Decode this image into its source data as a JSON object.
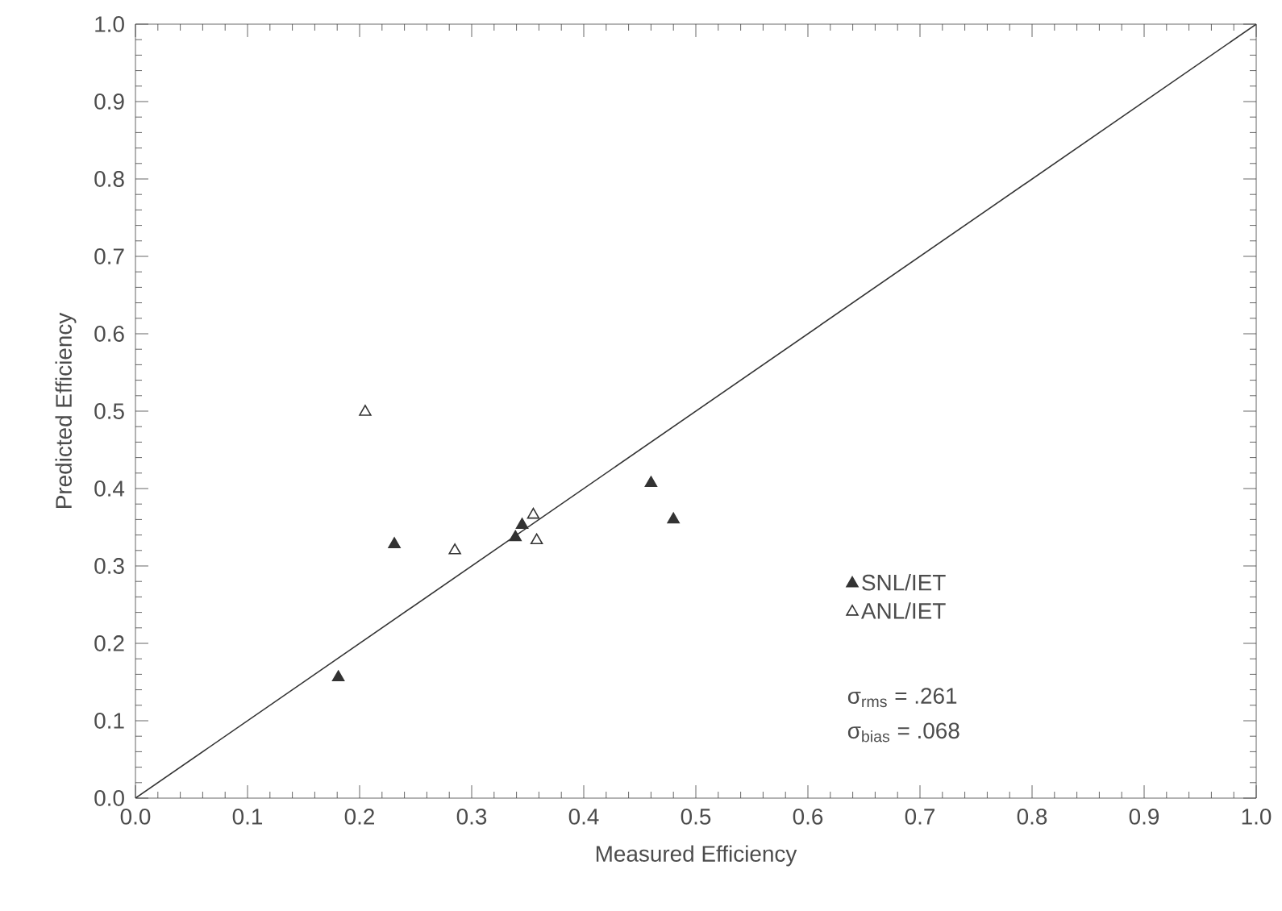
{
  "chart_data": {
    "type": "scatter",
    "xlabel": "Measured Efficiency",
    "ylabel": "Predicted Efficiency",
    "xlim": [
      0,
      1
    ],
    "ylim": [
      0,
      1
    ],
    "xticks": [
      {
        "value": 0,
        "label": "0.0"
      },
      {
        "value": 0.1,
        "label": "0.1"
      },
      {
        "value": 0.2,
        "label": "0.2"
      },
      {
        "value": 0.3,
        "label": "0.3"
      },
      {
        "value": 0.4,
        "label": "0.4"
      },
      {
        "value": 0.5,
        "label": "0.5"
      },
      {
        "value": 0.6,
        "label": "0.6"
      },
      {
        "value": 0.7,
        "label": "0.7"
      },
      {
        "value": 0.8,
        "label": "0.8"
      },
      {
        "value": 0.9,
        "label": "0.9"
      },
      {
        "value": 1,
        "label": "1.0"
      }
    ],
    "yticks": [
      {
        "value": 0,
        "label": "0.0"
      },
      {
        "value": 0.1,
        "label": "0.1"
      },
      {
        "value": 0.2,
        "label": "0.2"
      },
      {
        "value": 0.3,
        "label": "0.3"
      },
      {
        "value": 0.4,
        "label": "0.4"
      },
      {
        "value": 0.5,
        "label": "0.5"
      },
      {
        "value": 0.6,
        "label": "0.6"
      },
      {
        "value": 0.7,
        "label": "0.7"
      },
      {
        "value": 0.8,
        "label": "0.8"
      },
      {
        "value": 0.9,
        "label": "0.9"
      },
      {
        "value": 1,
        "label": "1.0"
      }
    ],
    "marker": "triangle",
    "grid": false,
    "legend": "right",
    "series": [
      {
        "name": "SNL/IET",
        "color": "#333333",
        "x": [
          0.181,
          0.231,
          0.339,
          0.345,
          0.46,
          0.48
        ],
        "values": [
          0.156,
          0.328,
          0.337,
          0.353,
          0.407,
          0.36
        ]
      },
      {
        "name": "ANL/IET",
        "color": "#333333",
        "x": [
          0.205,
          0.285,
          0.355,
          0.358
        ],
        "values": [
          0.499,
          0.32,
          0.366,
          0.333
        ]
      },
      {
        "type": "line",
        "marker": "none",
        "color": "#333333",
        "x": [
          0,
          1
        ],
        "values": [
          0,
          1
        ]
      }
    ],
    "annotations": [
      "σ$_{rms}$ = .261",
      "σ$_{bias}$ = .068"
    ]
  }
}
